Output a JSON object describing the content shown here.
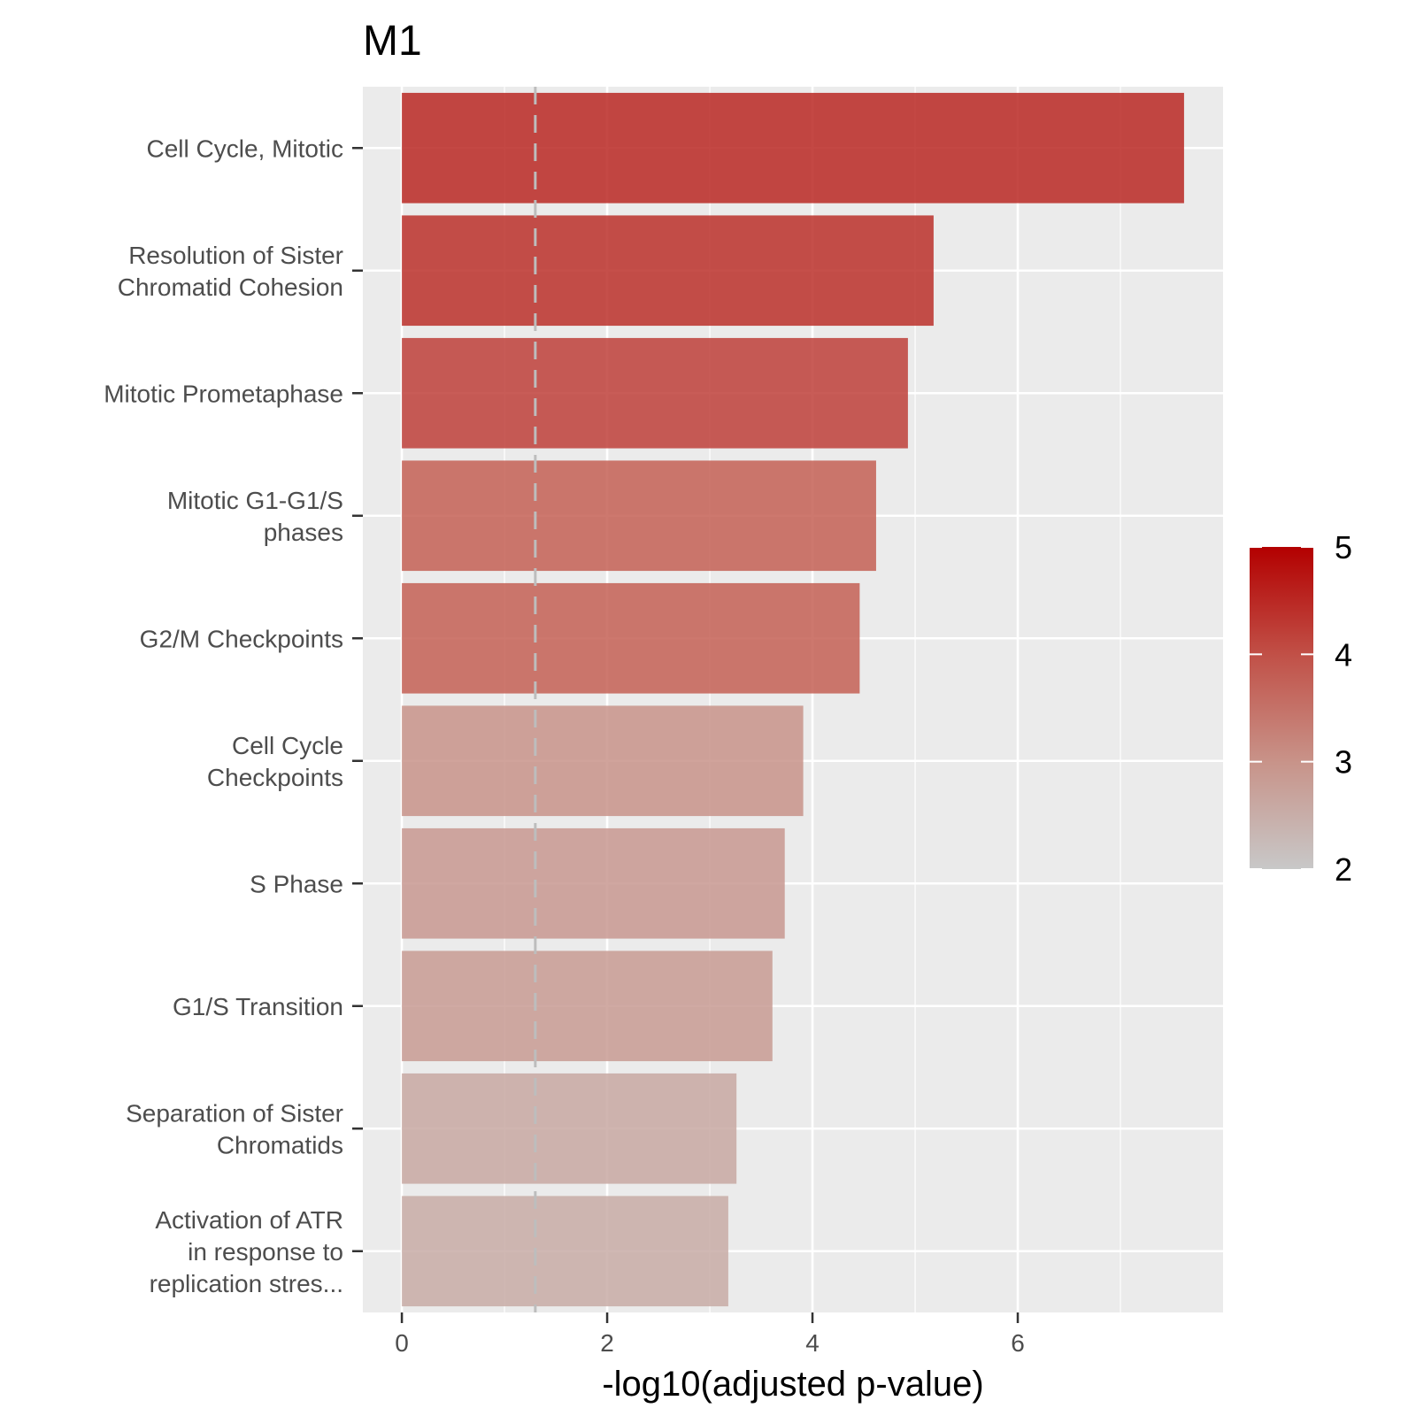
{
  "chart_data": {
    "type": "bar",
    "orientation": "horizontal",
    "title": "M1",
    "xlabel": "-log10(adjusted p-value)",
    "ylabel": "",
    "xlim": [
      -0.38,
      8.0
    ],
    "xticks": [
      0,
      2,
      4,
      6
    ],
    "categories": [
      [
        "Cell Cycle, Mitotic"
      ],
      [
        "Resolution of Sister",
        "Chromatid Cohesion"
      ],
      [
        "Mitotic Prometaphase"
      ],
      [
        "Mitotic G1-G1/S",
        "phases"
      ],
      [
        "G2/M Checkpoints"
      ],
      [
        "Cell Cycle",
        "Checkpoints"
      ],
      [
        "S Phase"
      ],
      [
        "G1/S Transition"
      ],
      [
        "Separation of Sister",
        "Chromatids"
      ],
      [
        "Activation of ATR",
        "in response to",
        "replication stres..."
      ]
    ],
    "values": [
      7.62,
      5.18,
      4.93,
      4.62,
      4.46,
      3.91,
      3.73,
      3.61,
      3.26,
      3.18
    ],
    "color_values": [
      4.5,
      4.4,
      4.2,
      3.8,
      3.8,
      3.0,
      2.9,
      2.85,
      2.6,
      2.55
    ],
    "reference_line": {
      "x": 1.3,
      "style": "dashed",
      "color": "#bdbdbd"
    },
    "legend": {
      "position": "right",
      "type": "colorbar",
      "range": [
        2,
        5
      ],
      "ticks": [
        2,
        3,
        4,
        5
      ],
      "color_low": "#c8c8c8",
      "color_mid": "#c8786a",
      "color_high": "#b30000"
    },
    "grid": true,
    "panel_background": "#ebebeb",
    "bar_alpha": 0.85
  }
}
